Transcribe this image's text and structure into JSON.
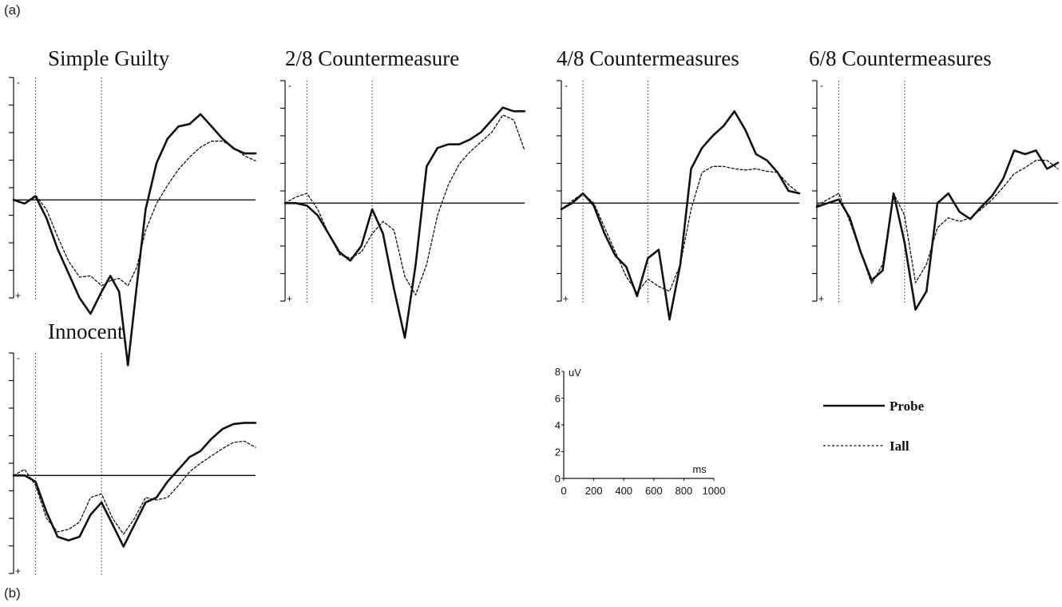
{
  "labels": {
    "a": "(a)",
    "b": "(b)"
  },
  "colors": {
    "ink": "#111111",
    "background": "#ffffff"
  },
  "chart_data": [
    {
      "type": "line",
      "title": "Simple Guilty",
      "polarity": {
        "top": "-",
        "bottom": "+"
      },
      "x_unit": "ms",
      "y_unit": "uV",
      "xlim": [
        -100,
        1000
      ],
      "ylim": [
        -10,
        8
      ],
      "y_orientation": "negative-up",
      "markers_ms": [
        0,
        300
      ],
      "series": [
        {
          "style": "solid",
          "x": [
            -100,
            -50,
            0,
            50,
            100,
            150,
            200,
            250,
            300,
            340,
            380,
            420,
            460,
            500,
            550,
            600,
            650,
            700,
            750,
            800,
            850,
            900,
            950,
            1000
          ],
          "y": [
            0,
            0.3,
            -0.3,
            1.5,
            4,
            6,
            8,
            9.3,
            7.5,
            6.2,
            7.5,
            13.5,
            7,
            0.8,
            -3,
            -5,
            -6,
            -6.2,
            -7,
            -6,
            -5,
            -4.2,
            -3.8,
            -3.8
          ]
        },
        {
          "style": "dashed",
          "x": [
            -100,
            -50,
            0,
            50,
            100,
            150,
            200,
            250,
            300,
            340,
            380,
            420,
            460,
            500,
            550,
            600,
            650,
            700,
            750,
            800,
            850,
            900,
            950,
            1000
          ],
          "y": [
            0,
            0.3,
            -0.4,
            0.8,
            3,
            5,
            6.3,
            6.2,
            7,
            6.6,
            6.4,
            7,
            5.5,
            2.5,
            0.3,
            -1.2,
            -2.5,
            -3.5,
            -4.3,
            -4.8,
            -4.8,
            -4.3,
            -3.6,
            -3.2
          ]
        }
      ]
    },
    {
      "type": "line",
      "title": "2/8 Countermeasure",
      "polarity": {
        "top": "-",
        "bottom": "+"
      },
      "x_unit": "ms",
      "y_unit": "uV",
      "xlim": [
        -100,
        1000
      ],
      "ylim": [
        -10,
        8
      ],
      "y_orientation": "negative-up",
      "markers_ms": [
        0,
        300
      ],
      "series": [
        {
          "style": "solid",
          "x": [
            -100,
            -50,
            0,
            50,
            100,
            150,
            200,
            250,
            300,
            350,
            400,
            450,
            500,
            550,
            600,
            650,
            700,
            750,
            800,
            850,
            900,
            950,
            1000
          ],
          "y": [
            0,
            0,
            0.2,
            1,
            2.5,
            4,
            4.7,
            3.5,
            0.5,
            2.5,
            7,
            11,
            5,
            -3,
            -4.5,
            -4.8,
            -4.8,
            -5.2,
            -5.8,
            -6.8,
            -7.8,
            -7.5,
            -7.5
          ]
        },
        {
          "style": "dashed",
          "x": [
            -100,
            -50,
            0,
            50,
            100,
            150,
            200,
            250,
            300,
            350,
            400,
            450,
            500,
            550,
            600,
            650,
            700,
            750,
            800,
            850,
            900,
            950,
            1000
          ],
          "y": [
            0,
            -0.5,
            -0.8,
            0.5,
            2.5,
            4.2,
            4.5,
            4,
            2.5,
            1.5,
            2.2,
            6,
            7.5,
            5,
            1,
            -1.5,
            -3.2,
            -4.2,
            -5,
            -5.8,
            -7.2,
            -6.8,
            -4.3
          ]
        }
      ]
    },
    {
      "type": "line",
      "title": "4/8 Countermeasures",
      "polarity": {
        "top": "-",
        "bottom": "+"
      },
      "x_unit": "ms",
      "y_unit": "uV",
      "xlim": [
        -100,
        1000
      ],
      "ylim": [
        -10,
        8
      ],
      "y_orientation": "negative-up",
      "markers_ms": [
        0,
        300
      ],
      "series": [
        {
          "style": "solid",
          "x": [
            -100,
            -50,
            0,
            50,
            100,
            150,
            200,
            250,
            300,
            350,
            400,
            450,
            500,
            550,
            600,
            650,
            700,
            750,
            800,
            850,
            900,
            950,
            1000
          ],
          "y": [
            0.5,
            0,
            -0.8,
            0.2,
            2.5,
            4.3,
            5.2,
            7.6,
            4.5,
            3.8,
            9.5,
            5,
            -2.8,
            -4.5,
            -5.5,
            -6.3,
            -7.5,
            -6,
            -4,
            -3.5,
            -2.5,
            -1,
            -0.8
          ]
        },
        {
          "style": "dashed",
          "x": [
            -100,
            -50,
            0,
            50,
            100,
            150,
            200,
            250,
            300,
            350,
            400,
            450,
            500,
            550,
            600,
            650,
            700,
            750,
            800,
            850,
            900,
            950,
            1000
          ],
          "y": [
            0.5,
            -0.2,
            -0.8,
            0,
            2,
            4,
            6,
            7.3,
            6.2,
            6.8,
            7.2,
            5,
            0.5,
            -2.5,
            -3,
            -3,
            -2.8,
            -2.7,
            -2.8,
            -2.6,
            -2.5,
            -1.5,
            -0.8
          ]
        }
      ]
    },
    {
      "type": "line",
      "title": "6/8 Countermeasures",
      "polarity": {
        "top": "-",
        "bottom": "+"
      },
      "x_unit": "ms",
      "y_unit": "uV",
      "xlim": [
        -100,
        1000
      ],
      "ylim": [
        -10,
        8
      ],
      "y_orientation": "negative-up",
      "markers_ms": [
        0,
        300
      ],
      "series": [
        {
          "style": "solid",
          "x": [
            -100,
            -50,
            0,
            50,
            100,
            150,
            200,
            250,
            300,
            350,
            400,
            450,
            500,
            550,
            600,
            650,
            700,
            750,
            800,
            850,
            900,
            950,
            1000
          ],
          "y": [
            0.3,
            0,
            -0.3,
            1.2,
            4,
            6.3,
            5.5,
            -0.8,
            3.2,
            8.7,
            7.2,
            0,
            -0.8,
            0.7,
            1.3,
            0.3,
            -0.6,
            -2,
            -4.3,
            -4,
            -4.3,
            -2.8,
            -3.3
          ]
        },
        {
          "style": "dashed",
          "x": [
            -100,
            -50,
            0,
            50,
            100,
            150,
            200,
            250,
            300,
            350,
            400,
            450,
            500,
            550,
            600,
            650,
            700,
            750,
            800,
            850,
            900,
            950,
            1000
          ],
          "y": [
            0.2,
            -0.3,
            -0.8,
            1.5,
            4,
            6.6,
            5,
            -0.8,
            1,
            6.5,
            5,
            2,
            1.2,
            1.5,
            1.2,
            0.5,
            -0.3,
            -1.3,
            -2.4,
            -2.9,
            -3.5,
            -3.5,
            -2.8
          ]
        }
      ]
    },
    {
      "type": "line",
      "title": "Innocent",
      "polarity": {
        "top": "-",
        "bottom": "+"
      },
      "x_unit": "ms",
      "y_unit": "uV",
      "xlim": [
        -100,
        1000
      ],
      "ylim": [
        -10,
        8
      ],
      "y_orientation": "negative-up",
      "markers_ms": [
        0,
        300
      ],
      "series": [
        {
          "style": "solid",
          "x": [
            -100,
            -50,
            0,
            50,
            100,
            150,
            200,
            250,
            300,
            350,
            400,
            450,
            500,
            550,
            600,
            650,
            700,
            750,
            800,
            850,
            900,
            950,
            1000
          ],
          "y": [
            0,
            0,
            0.5,
            3,
            5,
            5.3,
            5,
            3.2,
            2.2,
            4,
            5.8,
            4,
            2.2,
            1.8,
            0.5,
            -0.5,
            -1.5,
            -2,
            -3,
            -3.8,
            -4.2,
            -4.3,
            -4.3
          ]
        },
        {
          "style": "dashed",
          "x": [
            -100,
            -50,
            0,
            50,
            100,
            150,
            200,
            250,
            300,
            350,
            400,
            450,
            500,
            550,
            600,
            650,
            700,
            750,
            800,
            850,
            900,
            950,
            1000
          ],
          "y": [
            0,
            -0.5,
            0.8,
            3.5,
            4.6,
            4.4,
            3.8,
            1.8,
            1.5,
            3.5,
            4.8,
            3.5,
            1.8,
            2,
            1.8,
            0.8,
            -0.3,
            -1,
            -1.6,
            -2.2,
            -2.7,
            -2.8,
            -2.3
          ]
        }
      ]
    }
  ],
  "scale_key": {
    "y_label": "uV",
    "y_ticks": [
      "0",
      "2",
      "4",
      "6",
      "8"
    ],
    "x_label": "ms",
    "x_ticks": [
      "0",
      "200",
      "400",
      "600",
      "800",
      "1000"
    ]
  },
  "legend": [
    {
      "label": "Probe",
      "style": "solid"
    },
    {
      "label": "Iall",
      "style": "dashed"
    }
  ]
}
